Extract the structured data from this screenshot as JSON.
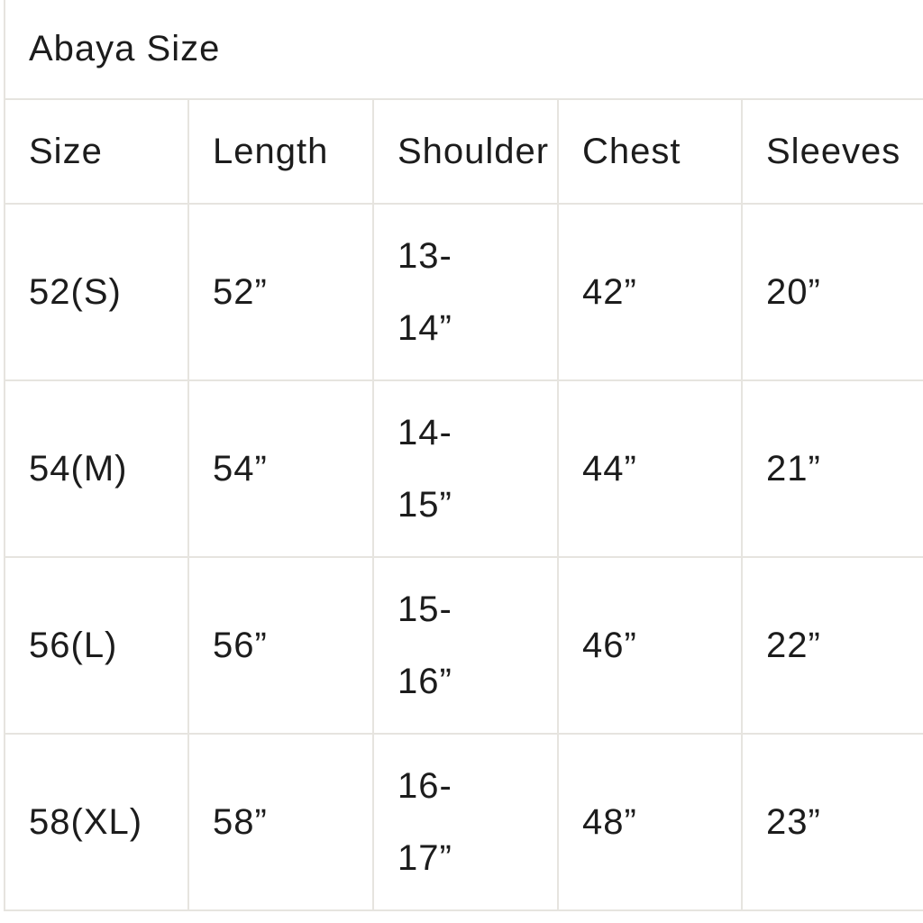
{
  "title": "Abaya Size",
  "headers": [
    "Size",
    "Length",
    "Shoulder",
    "Chest",
    "Sleeves"
  ],
  "rows": [
    {
      "size": "52(S)",
      "length": "52”",
      "shoulder_a": "13-",
      "shoulder_b": "14”",
      "chest": "42”",
      "sleeves": "20”"
    },
    {
      "size": "54(M)",
      "length": "54”",
      "shoulder_a": "14-",
      "shoulder_b": "15”",
      "chest": "44”",
      "sleeves": "21”"
    },
    {
      "size": "56(L)",
      "length": "56”",
      "shoulder_a": "15-",
      "shoulder_b": "16”",
      "chest": "46”",
      "sleeves": "22”"
    },
    {
      "size": "58(XL)",
      "length": "58”",
      "shoulder_a": "16-",
      "shoulder_b": "17”",
      "chest": "48”",
      "sleeves": "23”"
    }
  ]
}
